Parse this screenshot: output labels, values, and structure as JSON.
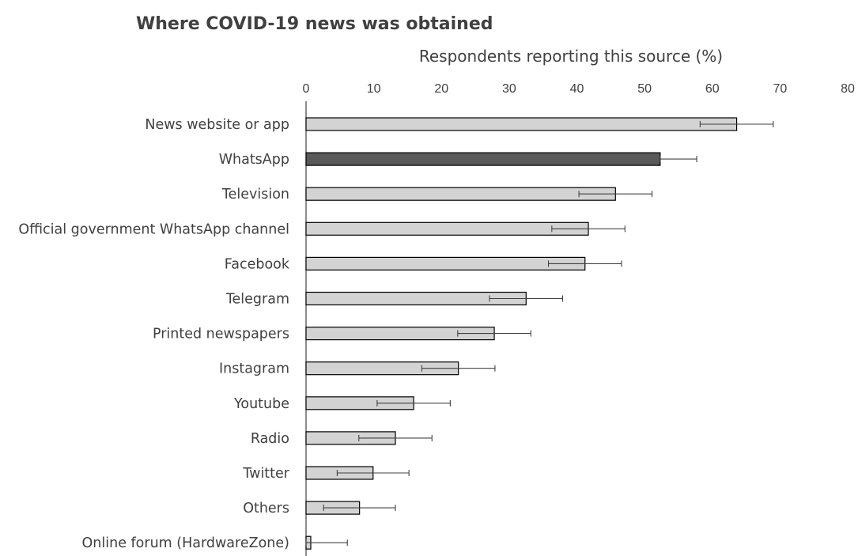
{
  "chart_data": {
    "type": "bar",
    "orientation": "horizontal",
    "title": "Where COVID-19 news was obtained",
    "xlabel": "Respondents reporting this source (%)",
    "ylabel": "",
    "xlim": [
      0,
      80
    ],
    "x_ticks": [
      "0",
      "10",
      "20",
      "30",
      "40",
      "50",
      "60",
      "70",
      "80"
    ],
    "x_axis_position": "top",
    "grid": false,
    "legend": "none",
    "categories": [
      "News website or app",
      "WhatsApp",
      "Television",
      "Official government WhatsApp channel",
      "Facebook",
      "Telegram",
      "Printed newspapers",
      "Instagram",
      "Youtube",
      "Radio",
      "Twitter",
      "Others",
      "Online forum (HardwareZone)"
    ],
    "values": [
      63.6,
      52.3,
      45.7,
      41.7,
      41.2,
      32.5,
      27.8,
      22.5,
      15.9,
      13.2,
      9.9,
      7.9,
      0.7
    ],
    "error_low": [
      58.2,
      52.3,
      40.3,
      36.3,
      35.8,
      27.1,
      22.4,
      17.1,
      10.5,
      7.8,
      4.6,
      2.6,
      0.0
    ],
    "error_high": [
      69.0,
      57.7,
      51.1,
      47.1,
      46.6,
      37.9,
      33.2,
      27.9,
      21.3,
      18.6,
      15.2,
      13.2,
      6.1
    ],
    "colors": {
      "default_bar": "#d3d3d3",
      "highlight_bar": "#595959",
      "highlight_category": "WhatsApp",
      "text": "#404040"
    }
  }
}
